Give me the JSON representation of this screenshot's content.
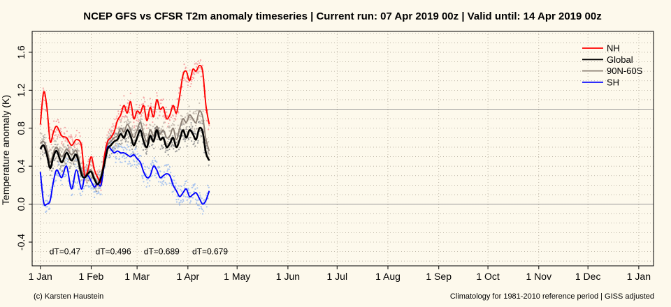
{
  "chart_data": {
    "type": "line",
    "title": "NCEP GFS vs CFSR T2m anomaly timeseries | Current run: 07 Apr 2019 00z | Valid until: 14 Apr 2019 00z",
    "xlabel": "",
    "ylabel": "Temperature anomaly (K)",
    "ylim": [
      -0.65,
      1.82
    ],
    "y_ticks": [
      -0.4,
      0.0,
      0.4,
      0.8,
      1.2,
      1.6
    ],
    "y_tick_labels": [
      "-0.4",
      "0.0",
      "0.4",
      "0.8",
      "1.2",
      "1.6"
    ],
    "x_range_days": [
      -5,
      374
    ],
    "x_ticks": [
      {
        "day": 0,
        "label": "1 Jan"
      },
      {
        "day": 31,
        "label": "1 Feb"
      },
      {
        "day": 59,
        "label": "1 Mar"
      },
      {
        "day": 90,
        "label": "1 Apr"
      },
      {
        "day": 120,
        "label": "1 May"
      },
      {
        "day": 151,
        "label": "1 Jun"
      },
      {
        "day": 181,
        "label": "1 Jul"
      },
      {
        "day": 212,
        "label": "1 Aug"
      },
      {
        "day": 243,
        "label": "1 Sep"
      },
      {
        "day": 273,
        "label": "1 Oct"
      },
      {
        "day": 304,
        "label": "1 Nov"
      },
      {
        "day": 334,
        "label": "1 Dec"
      },
      {
        "day": 365,
        "label": "1 Jan"
      }
    ],
    "grid": true,
    "legend_position": "top-right",
    "series": [
      {
        "name": "NH",
        "color": "#ff0000",
        "x": [
          0,
          2,
          4,
          6,
          8,
          10,
          13,
          16,
          19,
          22,
          25,
          27,
          29,
          31,
          33,
          35,
          37,
          39,
          41,
          43,
          45,
          47,
          49,
          51,
          53,
          55,
          57,
          59,
          61,
          63,
          65,
          67,
          69,
          71,
          73,
          75,
          77,
          79,
          81,
          83,
          85,
          87,
          89,
          91,
          93,
          95,
          97,
          99,
          101,
          103
        ],
        "y": [
          0.84,
          1.18,
          1.02,
          0.66,
          0.76,
          0.82,
          0.72,
          0.7,
          0.62,
          0.68,
          0.62,
          0.3,
          0.36,
          0.5,
          0.36,
          0.28,
          0.24,
          0.5,
          0.66,
          0.7,
          0.76,
          0.88,
          0.94,
          1.04,
          0.96,
          1.08,
          0.9,
          0.98,
          0.96,
          1.04,
          0.88,
          1.02,
          0.92,
          1.1,
          1.0,
          1.02,
          0.9,
          0.94,
          1.04,
          0.96,
          1.14,
          1.36,
          1.4,
          1.3,
          1.42,
          1.4,
          1.46,
          1.4,
          1.04,
          0.84
        ]
      },
      {
        "name": "Global",
        "color": "#000000",
        "x": [
          0,
          2,
          4,
          6,
          8,
          10,
          13,
          16,
          19,
          22,
          25,
          27,
          29,
          31,
          33,
          35,
          37,
          39,
          41,
          43,
          45,
          47,
          49,
          51,
          53,
          55,
          57,
          59,
          61,
          63,
          65,
          67,
          69,
          71,
          73,
          75,
          77,
          79,
          81,
          83,
          85,
          87,
          89,
          91,
          93,
          95,
          97,
          99,
          101,
          103
        ],
        "y": [
          0.58,
          0.62,
          0.52,
          0.38,
          0.5,
          0.56,
          0.44,
          0.54,
          0.46,
          0.52,
          0.32,
          0.28,
          0.32,
          0.34,
          0.26,
          0.21,
          0.28,
          0.42,
          0.58,
          0.62,
          0.66,
          0.68,
          0.74,
          0.7,
          0.78,
          0.72,
          0.62,
          0.7,
          0.78,
          0.66,
          0.6,
          0.72,
          0.66,
          0.78,
          0.68,
          0.7,
          0.6,
          0.64,
          0.7,
          0.6,
          0.68,
          0.78,
          0.7,
          0.78,
          0.74,
          0.68,
          0.8,
          0.76,
          0.54,
          0.46
        ]
      },
      {
        "name": "90N-60S",
        "color": "#8c7f74",
        "x": [
          0,
          2,
          4,
          6,
          8,
          10,
          13,
          16,
          19,
          22,
          25,
          27,
          29,
          31,
          33,
          35,
          37,
          39,
          41,
          43,
          45,
          47,
          49,
          51,
          53,
          55,
          57,
          59,
          61,
          63,
          65,
          67,
          69,
          71,
          73,
          75,
          77,
          79,
          81,
          83,
          85,
          87,
          89,
          91,
          93,
          95,
          97,
          99,
          101,
          103
        ],
        "y": [
          0.64,
          0.66,
          0.58,
          0.44,
          0.54,
          0.6,
          0.5,
          0.58,
          0.52,
          0.56,
          0.36,
          0.3,
          0.34,
          0.36,
          0.28,
          0.22,
          0.3,
          0.46,
          0.62,
          0.66,
          0.7,
          0.72,
          0.8,
          0.76,
          0.84,
          0.78,
          0.7,
          0.78,
          0.86,
          0.74,
          0.66,
          0.78,
          0.72,
          0.82,
          0.74,
          0.78,
          0.7,
          0.72,
          0.8,
          0.68,
          0.8,
          0.9,
          0.86,
          0.94,
          0.9,
          0.86,
          0.98,
          0.92,
          0.68,
          0.56
        ]
      },
      {
        "name": "SH",
        "color": "#0000ff",
        "x": [
          0,
          2,
          4,
          6,
          8,
          10,
          13,
          16,
          19,
          22,
          25,
          27,
          29,
          31,
          33,
          35,
          37,
          39,
          41,
          43,
          45,
          47,
          49,
          51,
          53,
          55,
          57,
          59,
          61,
          63,
          65,
          67,
          69,
          71,
          73,
          75,
          77,
          79,
          81,
          83,
          85,
          87,
          89,
          91,
          93,
          95,
          97,
          99,
          101,
          103
        ],
        "y": [
          0.34,
          0.02,
          0.0,
          0.04,
          0.24,
          0.36,
          0.28,
          0.4,
          0.16,
          0.36,
          0.16,
          0.28,
          0.3,
          0.24,
          0.18,
          0.22,
          0.2,
          0.42,
          0.6,
          0.58,
          0.54,
          0.56,
          0.54,
          0.54,
          0.52,
          0.5,
          0.52,
          0.48,
          0.44,
          0.34,
          0.28,
          0.3,
          0.4,
          0.36,
          0.28,
          0.3,
          0.32,
          0.3,
          0.2,
          0.14,
          0.08,
          0.12,
          0.16,
          0.08,
          0.1,
          0.12,
          0.06,
          0.0,
          0.04,
          0.14
        ]
      }
    ],
    "annotations": [
      {
        "text": "dT=0.47",
        "day": 15,
        "y": -0.5
      },
      {
        "text": "dT=0.496",
        "day": 44.5,
        "y": -0.5
      },
      {
        "text": "dT=0.689",
        "day": 74,
        "y": -0.5
      },
      {
        "text": "dT=0.679",
        "day": 103.5,
        "y": -0.5
      }
    ]
  },
  "footer": {
    "left": "(c) Karsten Haustein",
    "right": "Climatology for 1981-2010 reference period | GISS adjusted"
  }
}
